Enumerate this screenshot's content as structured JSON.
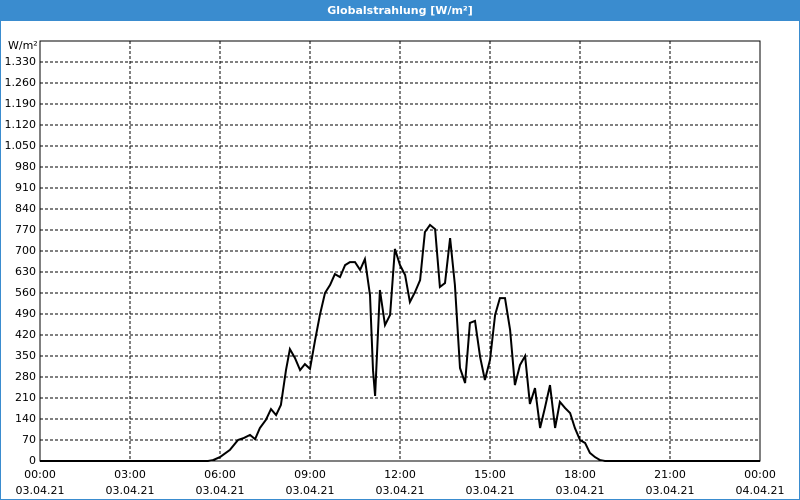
{
  "chart_data": {
    "type": "line",
    "title": "Globalstrahlung [W/m²]",
    "y_label": "W/m²",
    "x": [
      0,
      5.6,
      5.77,
      6.0,
      6.33,
      6.6,
      6.8,
      7.0,
      7.17,
      7.33,
      7.53,
      7.7,
      7.87,
      8.03,
      8.2,
      8.33,
      8.5,
      8.67,
      8.83,
      9.0,
      9.17,
      9.33,
      9.5,
      9.67,
      9.83,
      10.0,
      10.17,
      10.33,
      10.5,
      10.67,
      10.83,
      11.0,
      11.1,
      11.17,
      11.33,
      11.5,
      11.67,
      11.83,
      12.0,
      12.17,
      12.33,
      12.5,
      12.67,
      12.83,
      13.0,
      13.17,
      13.33,
      13.5,
      13.67,
      13.83,
      14.0,
      14.17,
      14.33,
      14.5,
      14.67,
      14.83,
      15.0,
      15.17,
      15.33,
      15.5,
      15.67,
      15.83,
      16.0,
      16.17,
      16.33,
      16.5,
      16.67,
      16.83,
      17.0,
      17.17,
      17.33,
      17.5,
      17.67,
      17.83,
      18.0,
      18.17,
      18.33,
      18.5,
      18.67,
      18.83,
      24
    ],
    "series": [
      {
        "color": "#000000",
        "values": [
          0,
          0,
          3,
          13,
          37,
          70,
          77,
          87,
          73,
          110,
          137,
          173,
          153,
          187,
          303,
          373,
          343,
          303,
          323,
          307,
          403,
          487,
          560,
          587,
          623,
          613,
          653,
          663,
          663,
          637,
          673,
          553,
          303,
          217,
          570,
          453,
          487,
          707,
          653,
          620,
          530,
          563,
          603,
          763,
          787,
          773,
          580,
          593,
          743,
          587,
          310,
          260,
          460,
          467,
          347,
          270,
          337,
          487,
          543,
          543,
          437,
          253,
          320,
          350,
          190,
          243,
          110,
          177,
          253,
          110,
          197,
          177,
          160,
          110,
          70,
          60,
          27,
          13,
          3,
          0,
          0
        ]
      }
    ],
    "xlim": [
      0,
      24
    ],
    "ylim": [
      0,
      1400
    ],
    "xticks": [
      {
        "value": 0,
        "label": [
          "00:00",
          "03.04.21"
        ]
      },
      {
        "value": 3,
        "label": [
          "03:00",
          "03.04.21"
        ]
      },
      {
        "value": 6,
        "label": [
          "06:00",
          "03.04.21"
        ]
      },
      {
        "value": 9,
        "label": [
          "09:00",
          "03.04.21"
        ]
      },
      {
        "value": 12,
        "label": [
          "12:00",
          "03.04.21"
        ]
      },
      {
        "value": 15,
        "label": [
          "15:00",
          "03.04.21"
        ]
      },
      {
        "value": 18,
        "label": [
          "18:00",
          "03.04.21"
        ]
      },
      {
        "value": 21,
        "label": [
          "21:00",
          "03.04.21"
        ]
      },
      {
        "value": 24,
        "label": [
          "00:00",
          "04.04.21"
        ]
      }
    ],
    "yticks": [
      0,
      70,
      140,
      210,
      280,
      350,
      420,
      490,
      560,
      630,
      700,
      770,
      840,
      910,
      980,
      {
        "value": 1050,
        "label": "1.050"
      },
      {
        "value": 1120,
        "label": "1.120"
      },
      {
        "value": 1190,
        "label": "1.190"
      },
      {
        "value": 1260,
        "label": "1.260"
      },
      {
        "value": 1330,
        "label": "1.330"
      }
    ],
    "grid": true
  }
}
